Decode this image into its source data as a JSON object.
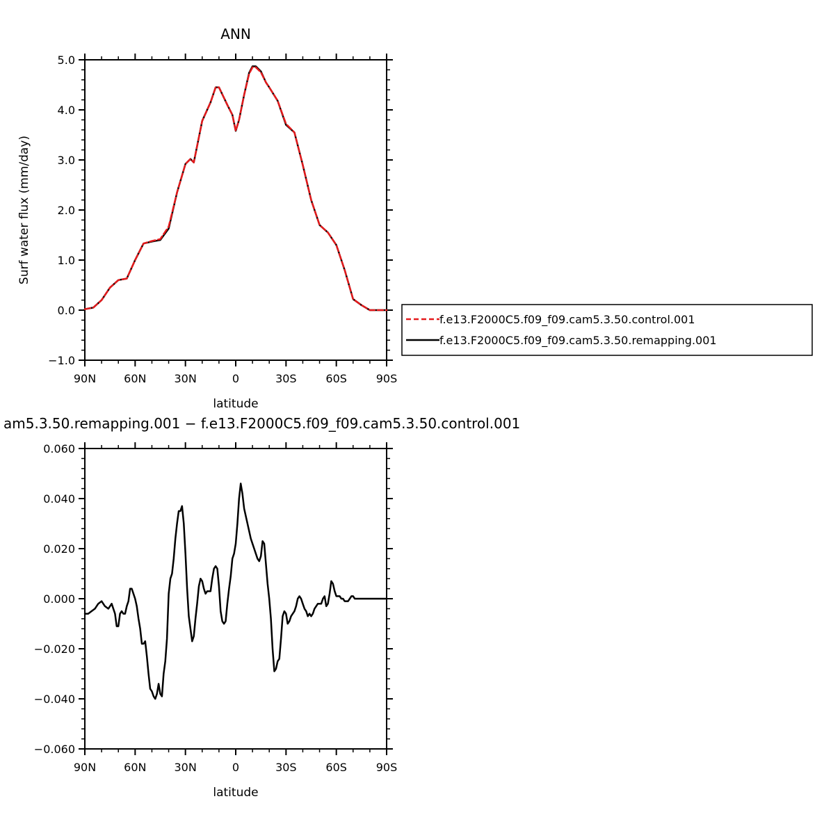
{
  "chart_data": [
    {
      "type": "line",
      "title": "ANN",
      "xlabel": "latitude",
      "ylabel": "Surf water flux (mm/day)",
      "xlim": [
        90,
        -90
      ],
      "ylim": [
        -1.0,
        5.0
      ],
      "x_ticks": [
        90,
        60,
        30,
        0,
        -30,
        -60,
        -90
      ],
      "x_tick_labels": [
        "90N",
        "60N",
        "30N",
        "0",
        "30S",
        "60S",
        "90S"
      ],
      "y_ticks": [
        -1.0,
        0.0,
        1.0,
        2.0,
        3.0,
        4.0,
        5.0
      ],
      "y_tick_labels": [
        "−1.0",
        "0.0",
        "1.0",
        "2.0",
        "3.0",
        "4.0",
        "5.0"
      ],
      "legend_position": "right",
      "series": [
        {
          "name": "f.e13.F2000C5.f09_f09.cam5.3.50.control.001",
          "color": "#e41a1c",
          "dash": true,
          "x": [
            90,
            85,
            80,
            75,
            70,
            65,
            60,
            55,
            50,
            45,
            40,
            35,
            30,
            27,
            25,
            20,
            15,
            12,
            10,
            5,
            2,
            0,
            -2,
            -5,
            -8,
            -10,
            -12,
            -15,
            -18,
            -20,
            -25,
            -30,
            -35,
            -40,
            -45,
            -50,
            -55,
            -60,
            -65,
            -70,
            -75,
            -80,
            -85,
            -90
          ],
          "values": [
            0.02,
            0.05,
            0.2,
            0.45,
            0.6,
            0.63,
            1.0,
            1.33,
            1.38,
            1.42,
            1.67,
            2.35,
            2.92,
            3.02,
            2.95,
            3.78,
            4.15,
            4.45,
            4.45,
            4.1,
            3.9,
            3.58,
            3.8,
            4.3,
            4.72,
            4.85,
            4.85,
            4.75,
            4.55,
            4.45,
            4.18,
            3.72,
            3.55,
            2.9,
            2.2,
            1.7,
            1.55,
            1.3,
            0.8,
            0.22,
            0.1,
            0.0,
            0.0,
            0.0
          ]
        },
        {
          "name": "f.e13.F2000C5.f09_f09.cam5.3.50.remapping.001",
          "color": "#000000",
          "dash": false,
          "x": [
            90,
            85,
            80,
            75,
            70,
            65,
            60,
            55,
            50,
            45,
            40,
            35,
            30,
            27,
            25,
            20,
            15,
            12,
            10,
            5,
            2,
            0,
            -2,
            -5,
            -8,
            -10,
            -12,
            -15,
            -18,
            -20,
            -25,
            -30,
            -35,
            -40,
            -45,
            -50,
            -55,
            -60,
            -65,
            -70,
            -75,
            -80,
            -85,
            -90
          ],
          "values": [
            0.02,
            0.05,
            0.2,
            0.45,
            0.6,
            0.63,
            1.0,
            1.33,
            1.37,
            1.4,
            1.63,
            2.35,
            2.92,
            3.02,
            2.95,
            3.78,
            4.15,
            4.45,
            4.45,
            4.1,
            3.9,
            3.58,
            3.8,
            4.3,
            4.74,
            4.87,
            4.87,
            4.77,
            4.55,
            4.45,
            4.18,
            3.7,
            3.55,
            2.9,
            2.2,
            1.7,
            1.55,
            1.3,
            0.8,
            0.22,
            0.1,
            0.0,
            0.0,
            0.0
          ]
        }
      ]
    },
    {
      "type": "line",
      "title": "am5.3.50.remapping.001 − f.e13.F2000C5.f09_f09.cam5.3.50.control.001",
      "xlabel": "latitude",
      "ylabel": "",
      "xlim": [
        90,
        -90
      ],
      "ylim": [
        -0.06,
        0.06
      ],
      "x_ticks": [
        90,
        60,
        30,
        0,
        -30,
        -60,
        -90
      ],
      "x_tick_labels": [
        "90N",
        "60N",
        "30N",
        "0",
        "30S",
        "60S",
        "90S"
      ],
      "y_ticks": [
        -0.06,
        -0.04,
        -0.02,
        0.0,
        0.02,
        0.04,
        0.06
      ],
      "y_tick_labels": [
        "−0.060",
        "−0.040",
        "−0.020",
        "0.000",
        "0.020",
        "0.040",
        "0.060"
      ],
      "series": [
        {
          "name": "",
          "color": "#000000",
          "dash": false,
          "x": [
            90,
            88,
            86,
            84,
            82,
            80,
            78,
            76,
            74,
            72,
            71,
            70,
            69,
            68,
            67,
            66,
            65,
            64,
            63,
            62,
            61,
            60,
            59,
            58,
            57,
            56,
            55,
            54,
            53,
            52,
            51,
            50,
            49,
            48,
            47,
            46,
            45,
            44,
            43,
            42,
            41,
            40,
            39,
            38,
            37,
            36,
            35,
            34,
            33,
            32,
            31,
            30,
            29,
            28,
            27,
            26,
            25,
            24,
            23,
            22,
            21,
            20,
            19,
            18,
            17,
            16,
            15,
            14,
            13,
            12,
            11,
            10,
            9,
            8,
            7,
            6,
            5,
            4,
            3,
            2,
            1,
            0,
            -1,
            -2,
            -3,
            -4,
            -5,
            -6,
            -7,
            -8,
            -9,
            -10,
            -11,
            -12,
            -13,
            -14,
            -15,
            -16,
            -17,
            -18,
            -19,
            -20,
            -21,
            -22,
            -23,
            -24,
            -25,
            -26,
            -27,
            -28,
            -29,
            -30,
            -31,
            -32,
            -33,
            -34,
            -35,
            -36,
            -37,
            -38,
            -39,
            -40,
            -41,
            -42,
            -43,
            -44,
            -45,
            -46,
            -47,
            -48,
            -49,
            -50,
            -51,
            -52,
            -53,
            -54,
            -55,
            -56,
            -57,
            -58,
            -59,
            -60,
            -61,
            -62,
            -63,
            -64,
            -65,
            -66,
            -67,
            -68,
            -69,
            -70,
            -71,
            -72,
            -73,
            -74,
            -75,
            -76,
            -77,
            -78,
            -79,
            -80,
            -82,
            -84,
            -86,
            -88,
            -90
          ],
          "values": [
            -0.006,
            -0.006,
            -0.005,
            -0.004,
            -0.002,
            -0.001,
            -0.003,
            -0.004,
            -0.002,
            -0.006,
            -0.011,
            -0.011,
            -0.006,
            -0.005,
            -0.006,
            -0.006,
            -0.003,
            -0.001,
            0.004,
            0.004,
            0.002,
            0.0,
            -0.003,
            -0.008,
            -0.012,
            -0.018,
            -0.018,
            -0.017,
            -0.023,
            -0.03,
            -0.036,
            -0.037,
            -0.039,
            -0.04,
            -0.038,
            -0.034,
            -0.038,
            -0.039,
            -0.03,
            -0.025,
            -0.016,
            0.002,
            0.008,
            0.01,
            0.016,
            0.024,
            0.03,
            0.035,
            0.035,
            0.037,
            0.03,
            0.018,
            0.004,
            -0.007,
            -0.012,
            -0.017,
            -0.015,
            -0.008,
            -0.002,
            0.005,
            0.008,
            0.007,
            0.004,
            0.002,
            0.003,
            0.003,
            0.003,
            0.008,
            0.012,
            0.013,
            0.012,
            0.005,
            -0.005,
            -0.009,
            -0.01,
            -0.009,
            -0.002,
            0.004,
            0.009,
            0.016,
            0.018,
            0.022,
            0.03,
            0.04,
            0.046,
            0.042,
            0.036,
            0.033,
            0.03,
            0.027,
            0.024,
            0.022,
            0.02,
            0.018,
            0.016,
            0.015,
            0.017,
            0.023,
            0.022,
            0.014,
            0.006,
            0.0,
            -0.008,
            -0.02,
            -0.029,
            -0.028,
            -0.025,
            -0.024,
            -0.016,
            -0.007,
            -0.005,
            -0.006,
            -0.01,
            -0.009,
            -0.007,
            -0.006,
            -0.005,
            -0.003,
            0.0,
            0.001,
            0.0,
            -0.002,
            -0.004,
            -0.005,
            -0.007,
            -0.006,
            -0.007,
            -0.006,
            -0.004,
            -0.003,
            -0.002,
            -0.002,
            -0.002,
            0.0,
            0.001,
            -0.003,
            -0.002,
            0.002,
            0.007,
            0.006,
            0.003,
            0.001,
            0.001,
            0.001,
            0.0,
            0.0,
            -0.001,
            -0.001,
            -0.001,
            0.0,
            0.001,
            0.001,
            0.0,
            0.0,
            0.0,
            0.0,
            0.0,
            0.0,
            0.0,
            0.0,
            0.0,
            0.0,
            0.0,
            0.0,
            0.0,
            0.0,
            0.0
          ]
        }
      ]
    }
  ]
}
